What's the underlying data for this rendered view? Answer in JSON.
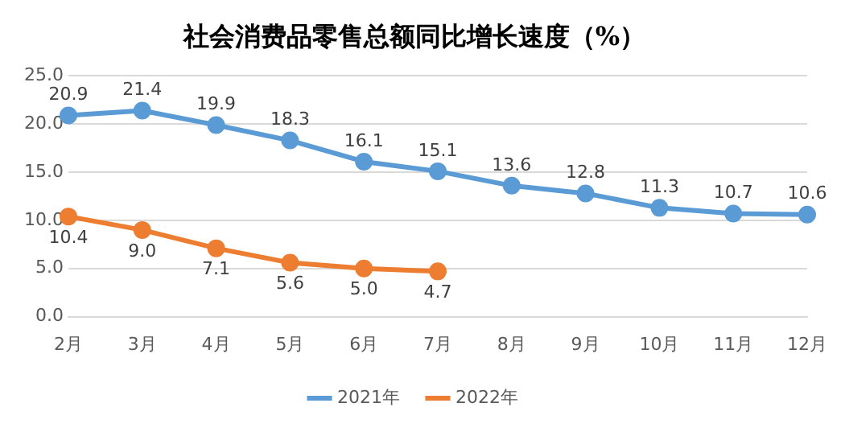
{
  "chart_data": {
    "type": "line",
    "title": "社会消费品零售总额同比增长速度（%）",
    "categories": [
      "2月",
      "3月",
      "4月",
      "5月",
      "6月",
      "7月",
      "8月",
      "9月",
      "10月",
      "11月",
      "12月"
    ],
    "series": [
      {
        "name": "2021年",
        "color": "#5b9bd5",
        "values": [
          20.9,
          21.4,
          19.9,
          18.3,
          16.1,
          15.1,
          13.6,
          12.8,
          11.3,
          10.7,
          10.6
        ],
        "value_labels": [
          "20.9",
          "21.4",
          "19.9",
          "18.3",
          "16.1",
          "15.1",
          "13.6",
          "12.8",
          "11.3",
          "10.7",
          "10.6"
        ]
      },
      {
        "name": "2022年",
        "color": "#ed7d31",
        "values": [
          10.4,
          9.0,
          7.1,
          5.6,
          5.0,
          4.7,
          null,
          null,
          null,
          null,
          null
        ],
        "value_labels": [
          "10.4",
          "9.0",
          "7.1",
          "5.6",
          "5.0",
          "4.7",
          null,
          null,
          null,
          null,
          null
        ]
      }
    ],
    "ylim": [
      0,
      25
    ],
    "yticks": [
      {
        "value": 0,
        "label": "0.0"
      },
      {
        "value": 5,
        "label": "5.0"
      },
      {
        "value": 10,
        "label": "10.0"
      },
      {
        "value": 15,
        "label": "15.0"
      },
      {
        "value": 20,
        "label": "20.0"
      },
      {
        "value": 25,
        "label": "25.0"
      }
    ],
    "grid": "y",
    "legend": "bottom",
    "marker": "circle",
    "line_style": "solid"
  }
}
